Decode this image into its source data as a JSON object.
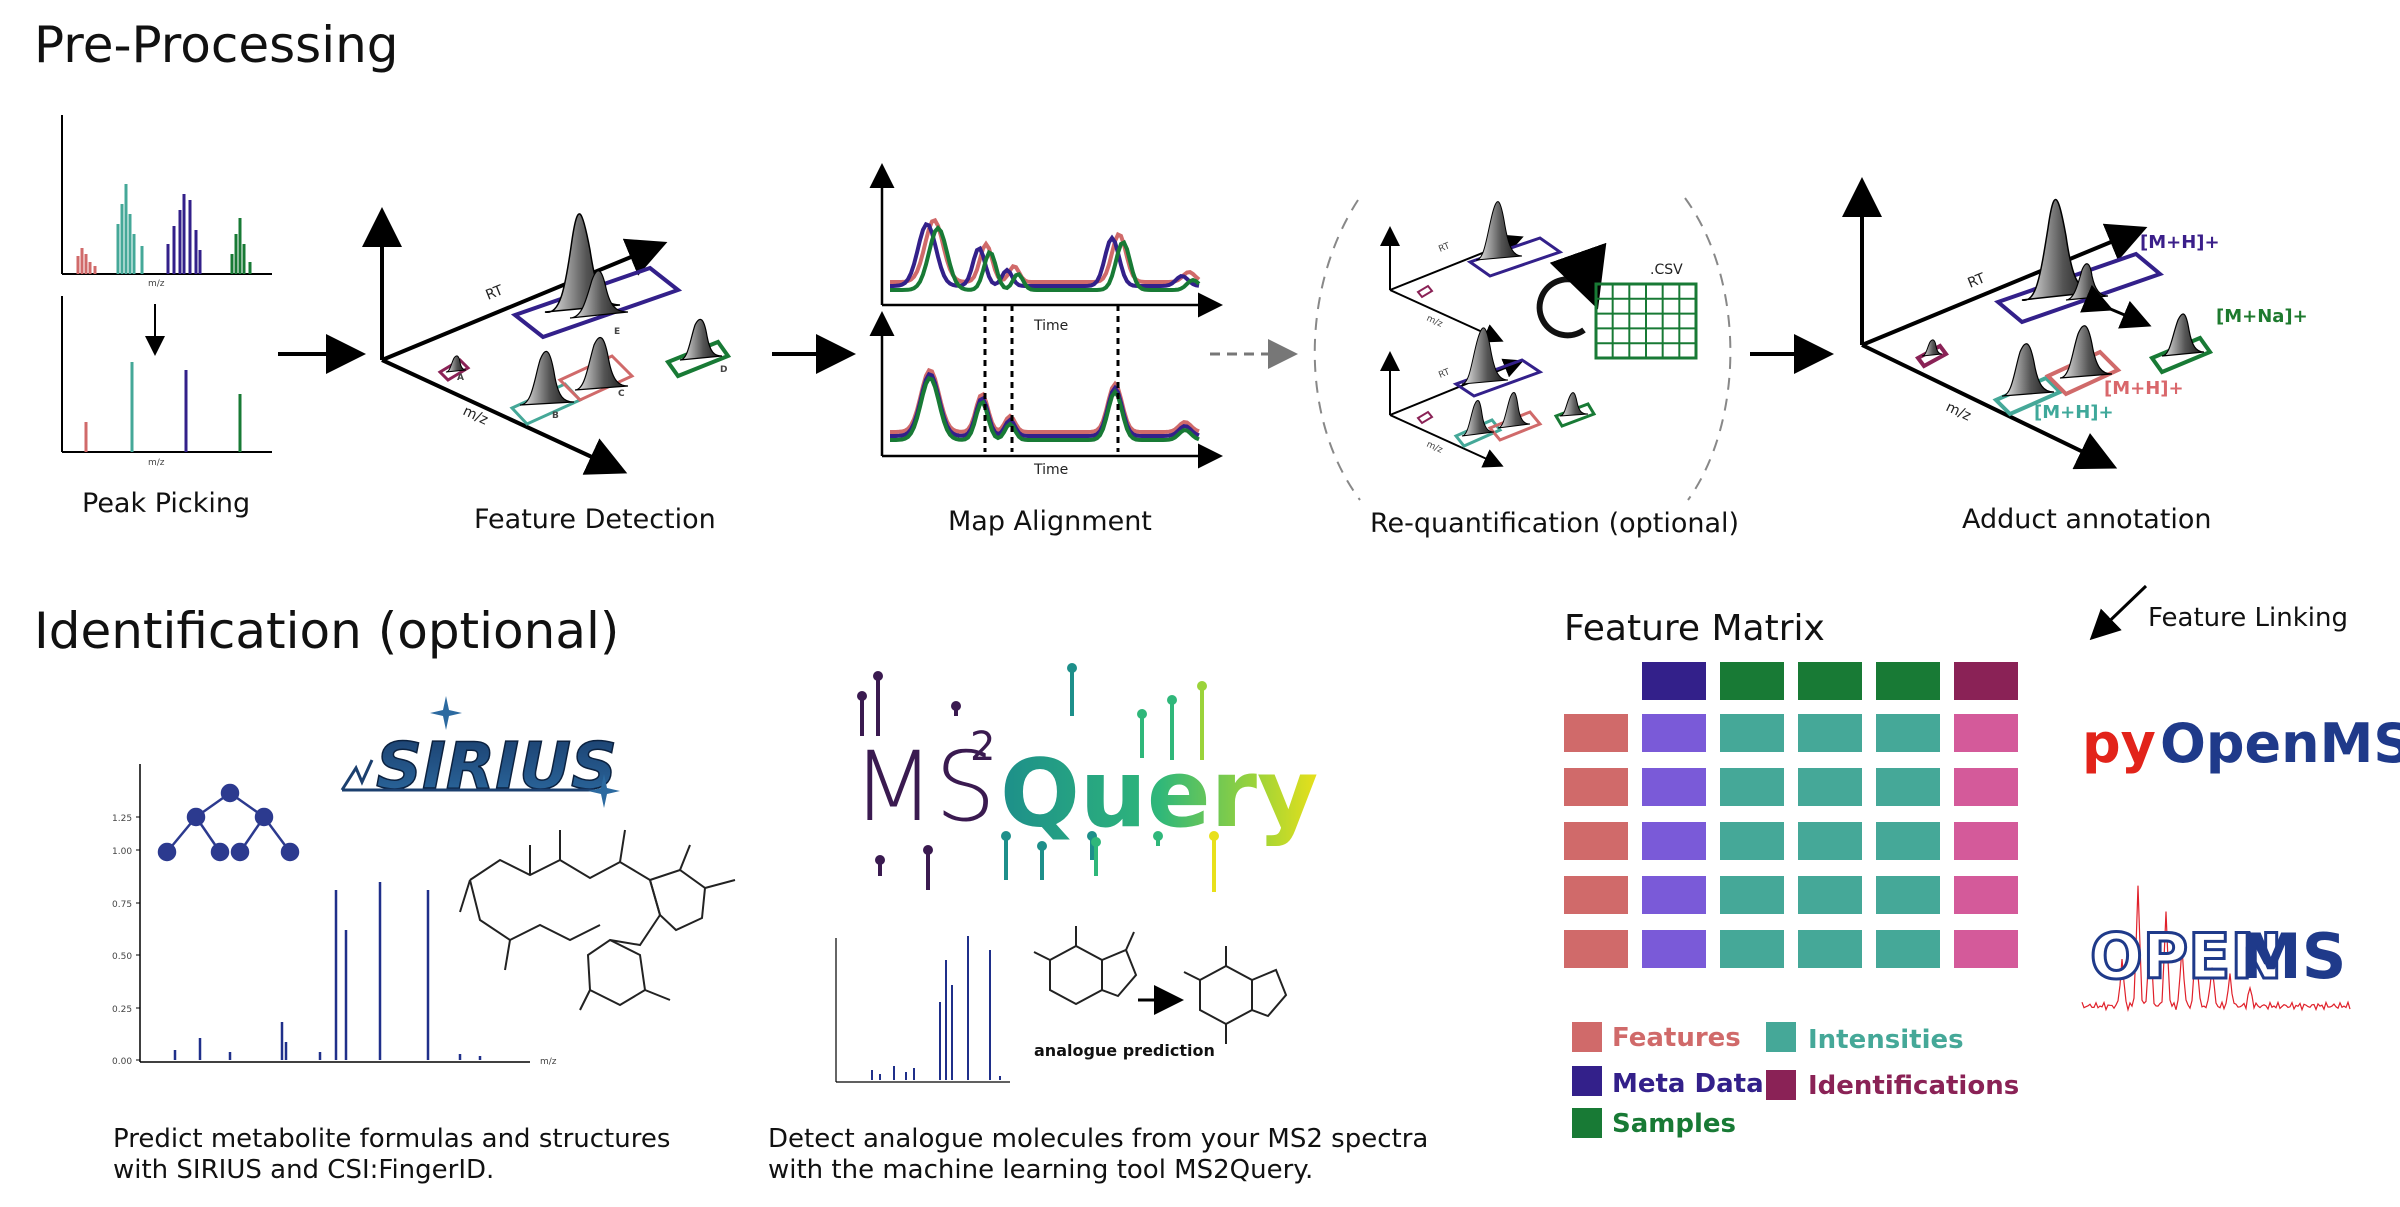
{
  "sections": {
    "preprocessing_title": "Pre-Processing",
    "identification_title": "Identification (optional)"
  },
  "steps": [
    {
      "caption": "Peak Picking",
      "axis_label": "m/z"
    },
    {
      "caption": "Feature Detection",
      "rt_label": "RT",
      "mz_label": "m/z",
      "feature_labels": [
        "A",
        "B",
        "C",
        "D",
        "E"
      ]
    },
    {
      "caption": "Map Alignment",
      "time_label": "Time"
    },
    {
      "caption": "Re-quantification (optional)",
      "csv_label": ".CSV",
      "rt_label": "RT",
      "mz_label": "m/z"
    },
    {
      "caption": "Adduct annotation",
      "rt_label": "RT",
      "mz_label": "m/z",
      "adducts": [
        {
          "label": "[M+H]+",
          "color": "#3b1f8a"
        },
        {
          "label": "[M+Na]+",
          "color": "#1e7a2e"
        },
        {
          "label": "[M+H]+",
          "color": "#d9676b"
        },
        {
          "label": "[M+H]+",
          "color": "#3fa89a"
        }
      ]
    }
  ],
  "sirius": {
    "logo": "SIRIUS",
    "y_ticks": [
      "1.25",
      "1.00",
      "0.75",
      "0.50",
      "0.25",
      "0.00"
    ],
    "x_label": "m/z",
    "description_line1": "Predict metabolite formulas and structures",
    "description_line2": "with SIRIUS and CSI:FingerID."
  },
  "ms2query": {
    "logo_ms": "MS",
    "logo_sup": "2",
    "logo_query": "Query",
    "analogue_label": "analogue prediction",
    "description_line1": "Detect analogue molecules from your MS2 spectra",
    "description_line2": "with the machine learning tool MS2Query."
  },
  "feature_matrix": {
    "title": "Feature Matrix",
    "feature_linking_label": "Feature Linking",
    "legend": [
      {
        "label": "Features",
        "color": "#d06a6a"
      },
      {
        "label": "Intensities",
        "color": "#45a898"
      },
      {
        "label": "Meta Data",
        "color": "#33208a"
      },
      {
        "label": "Identifications",
        "color": "#8a2256"
      },
      {
        "label": "Samples",
        "color": "#187a35"
      }
    ]
  },
  "logos": {
    "pyopenms_py": "py",
    "pyopenms_rest": "OpenMS",
    "openms_open": "OPEN",
    "openms_ms": "MS"
  },
  "colors": {
    "red": "#d06a6a",
    "teal": "#45a898",
    "purple": "#33208a",
    "green": "#187a35",
    "magenta": "#8a2256",
    "pink": "#d45a9a",
    "lavender": "#7a5ad8",
    "navy": "#1f3a8a"
  }
}
